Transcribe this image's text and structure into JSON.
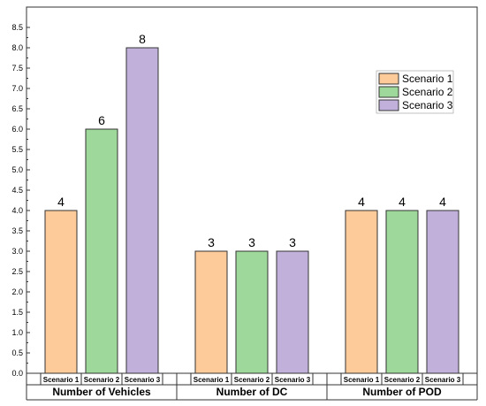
{
  "chart_data": {
    "type": "bar",
    "groups": [
      "Number of Vehicles",
      "Number of DC",
      "Number of POD"
    ],
    "series": [
      {
        "name": "Scenario 1",
        "color": "#fdcb9a",
        "values": [
          4,
          3,
          4
        ]
      },
      {
        "name": "Scenario 2",
        "color": "#9ed89a",
        "values": [
          6,
          3,
          4
        ]
      },
      {
        "name": "Scenario 3",
        "color": "#c1b0da",
        "values": [
          8,
          3,
          4
        ]
      }
    ],
    "category_labels": [
      "Scenario 1",
      "Scenario 2",
      "Scenario 3"
    ],
    "ylim": [
      0,
      9
    ],
    "y_ticks": [
      "0.0",
      "0.5",
      "1.0",
      "1.5",
      "2.0",
      "2.5",
      "3.0",
      "3.5",
      "4.0",
      "4.5",
      "5.0",
      "5.5",
      "6.0",
      "6.5",
      "7.0",
      "7.5",
      "8.0",
      "8.5"
    ],
    "grid": false,
    "legend_position": "top-right"
  }
}
